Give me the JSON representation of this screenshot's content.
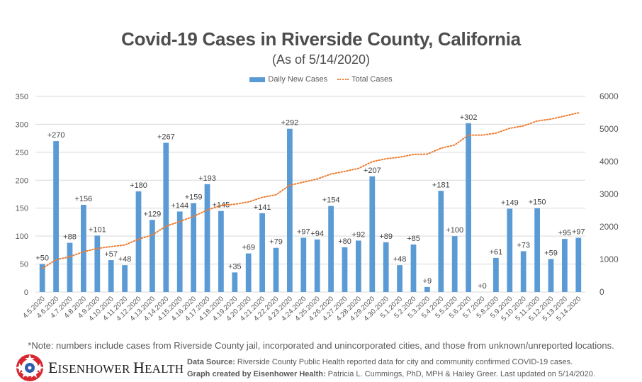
{
  "chart_data": {
    "type": "bar+line",
    "title": "Covid-19 Cases in Riverside County, California",
    "subtitle": "(As of 5/14/2020)",
    "legend": {
      "position": "top",
      "entries": [
        {
          "name": "Daily New Cases",
          "style": "bar",
          "color": "#5b9bd5"
        },
        {
          "name": "Total Cases",
          "style": "dotted-line",
          "color": "#ed7d31"
        }
      ]
    },
    "categories": [
      "4.5.2020",
      "4.6.2020",
      "4.7.2020",
      "4.8.2020",
      "4.9.2020",
      "4.10.2020",
      "4.11.2020",
      "4.12.2020",
      "4.13.2020",
      "4.14.2020",
      "4.15.2020",
      "4.16.2020",
      "4.17.2020",
      "4.18.2020",
      "4.19.2020",
      "4.20.2020",
      "4.21.2020",
      "4.22.2020",
      "4.23.2020",
      "4.24.2020",
      "4.25.2020",
      "4.26.2020",
      "4.27.2020",
      "4.28.2020",
      "4.29.2020",
      "4.30.2020",
      "5.1.2020",
      "5.2.2020",
      "5.3.2020",
      "5.4.2020",
      "5.5.2020",
      "5.6.2020",
      "5.7.2020",
      "5.8.2020",
      "5.9.2020",
      "5.10.2020",
      "5.11.2020",
      "5.12.2020",
      "5.13.2020",
      "5.14.2020"
    ],
    "series": [
      {
        "name": "Daily New Cases",
        "axis": "left",
        "type": "bar",
        "values": [
          50,
          270,
          88,
          156,
          101,
          57,
          48,
          180,
          129,
          267,
          144,
          159,
          193,
          145,
          35,
          69,
          141,
          79,
          292,
          97,
          94,
          154,
          80,
          92,
          207,
          89,
          48,
          85,
          9,
          181,
          100,
          302,
          0,
          61,
          149,
          73,
          150,
          59,
          95,
          97
        ],
        "labels": [
          "+50",
          "+270",
          "+88",
          "+156",
          "+101",
          "+57",
          "+48",
          "+180",
          "+129",
          "+267",
          "+144",
          "+159",
          "+193",
          "+145",
          "+35",
          "+69",
          "+141",
          "+79",
          "+292",
          "+97",
          "+94",
          "+154",
          "+80",
          "+92",
          "+207",
          "+89",
          "+48",
          "+85",
          "+9",
          "+181",
          "+100",
          "+302",
          "+0",
          "+61",
          "+149",
          "+73",
          "+150",
          "+59",
          "+95",
          "+97"
        ]
      },
      {
        "name": "Total Cases",
        "axis": "right",
        "type": "line",
        "values": [
          721,
          991,
          1079,
          1235,
          1336,
          1393,
          1441,
          1621,
          1750,
          2017,
          2161,
          2320,
          2513,
          2658,
          2693,
          2762,
          2903,
          2982,
          3274,
          3371,
          3465,
          3619,
          3699,
          3791,
          3998,
          4087,
          4135,
          4220,
          4229,
          4410,
          4510,
          4812,
          4812,
          4873,
          5022,
          5095,
          5245,
          5304,
          5399,
          5496
        ]
      }
    ],
    "yaxis_left": {
      "min": 0,
      "max": 350,
      "ticks": [
        0,
        50,
        100,
        150,
        200,
        250,
        300,
        350
      ]
    },
    "yaxis_right": {
      "min": 0,
      "max": 6000,
      "ticks": [
        0,
        1000,
        2000,
        3000,
        4000,
        5000,
        6000
      ]
    },
    "grid": true,
    "xlabel": "",
    "ylabel": ""
  },
  "footer": {
    "note": "*Note: numbers include cases from Riverside County jail, incorporated and unincorporated cities, and those from unknown/unreported locations.",
    "logo_text_first": "E",
    "logo_text_rest1": "ISENHOWER ",
    "logo_text_h": "H",
    "logo_text_rest2": "EALTH",
    "source_label": "Data Source:",
    "source_text": " Riverside County Public Health reported data for city and community confirmed COVID-19 cases.",
    "credit_label": "Graph created by Eisenhower Health:",
    "credit_text": " Patricia L. Cummings, PhD, MPH & Hailey Greer. Last updated on 5/14/2020."
  }
}
